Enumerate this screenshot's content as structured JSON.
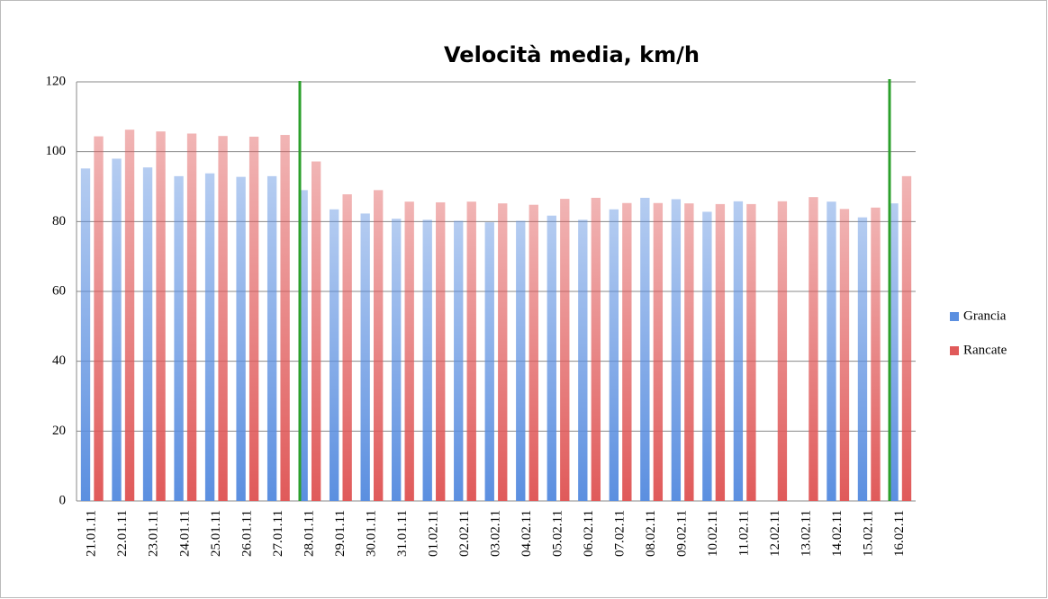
{
  "chart_data": {
    "type": "bar",
    "title": "Velocità media, km/h",
    "categories": [
      "21.01.11",
      "22.01.11",
      "23.01.11",
      "24.01.11",
      "25.01.11",
      "26.01.11",
      "27.01.11",
      "28.01.11",
      "29.01.11",
      "30.01.11",
      "31.01.11",
      "01.02.11",
      "02.02.11",
      "03.02.11",
      "04.02.11",
      "05.02.11",
      "06.02.11",
      "07.02.11",
      "08.02.11",
      "09.02.11",
      "10.02.11",
      "11.02.11",
      "12.02.11",
      "13.02.11",
      "14.02.11",
      "15.02.11",
      "16.02.11"
    ],
    "series": [
      {
        "name": "Grancia",
        "color": "#5b8fe0",
        "values": [
          95.2,
          98,
          95.5,
          93,
          93.8,
          92.8,
          93,
          89,
          83.5,
          82.3,
          80.8,
          80.5,
          80.2,
          79.8,
          80.2,
          81.7,
          80.5,
          83.5,
          86.8,
          86.4,
          82.8,
          85.8,
          null,
          null,
          85.7,
          81.2,
          85.2
        ]
      },
      {
        "name": "Rancate",
        "color": "#e05a5a",
        "values": [
          104.4,
          106.3,
          105.8,
          105.2,
          104.5,
          104.3,
          104.8,
          97.2,
          87.8,
          89,
          85.7,
          85.5,
          85.7,
          85.2,
          84.8,
          86.5,
          86.8,
          85.3,
          85.3,
          85.2,
          85,
          85,
          85.8,
          87,
          83.6,
          84,
          93
        ]
      }
    ],
    "ylim": [
      0,
      120
    ],
    "yticks": [
      0,
      20,
      40,
      60,
      80,
      100,
      120
    ],
    "grid": true
  }
}
